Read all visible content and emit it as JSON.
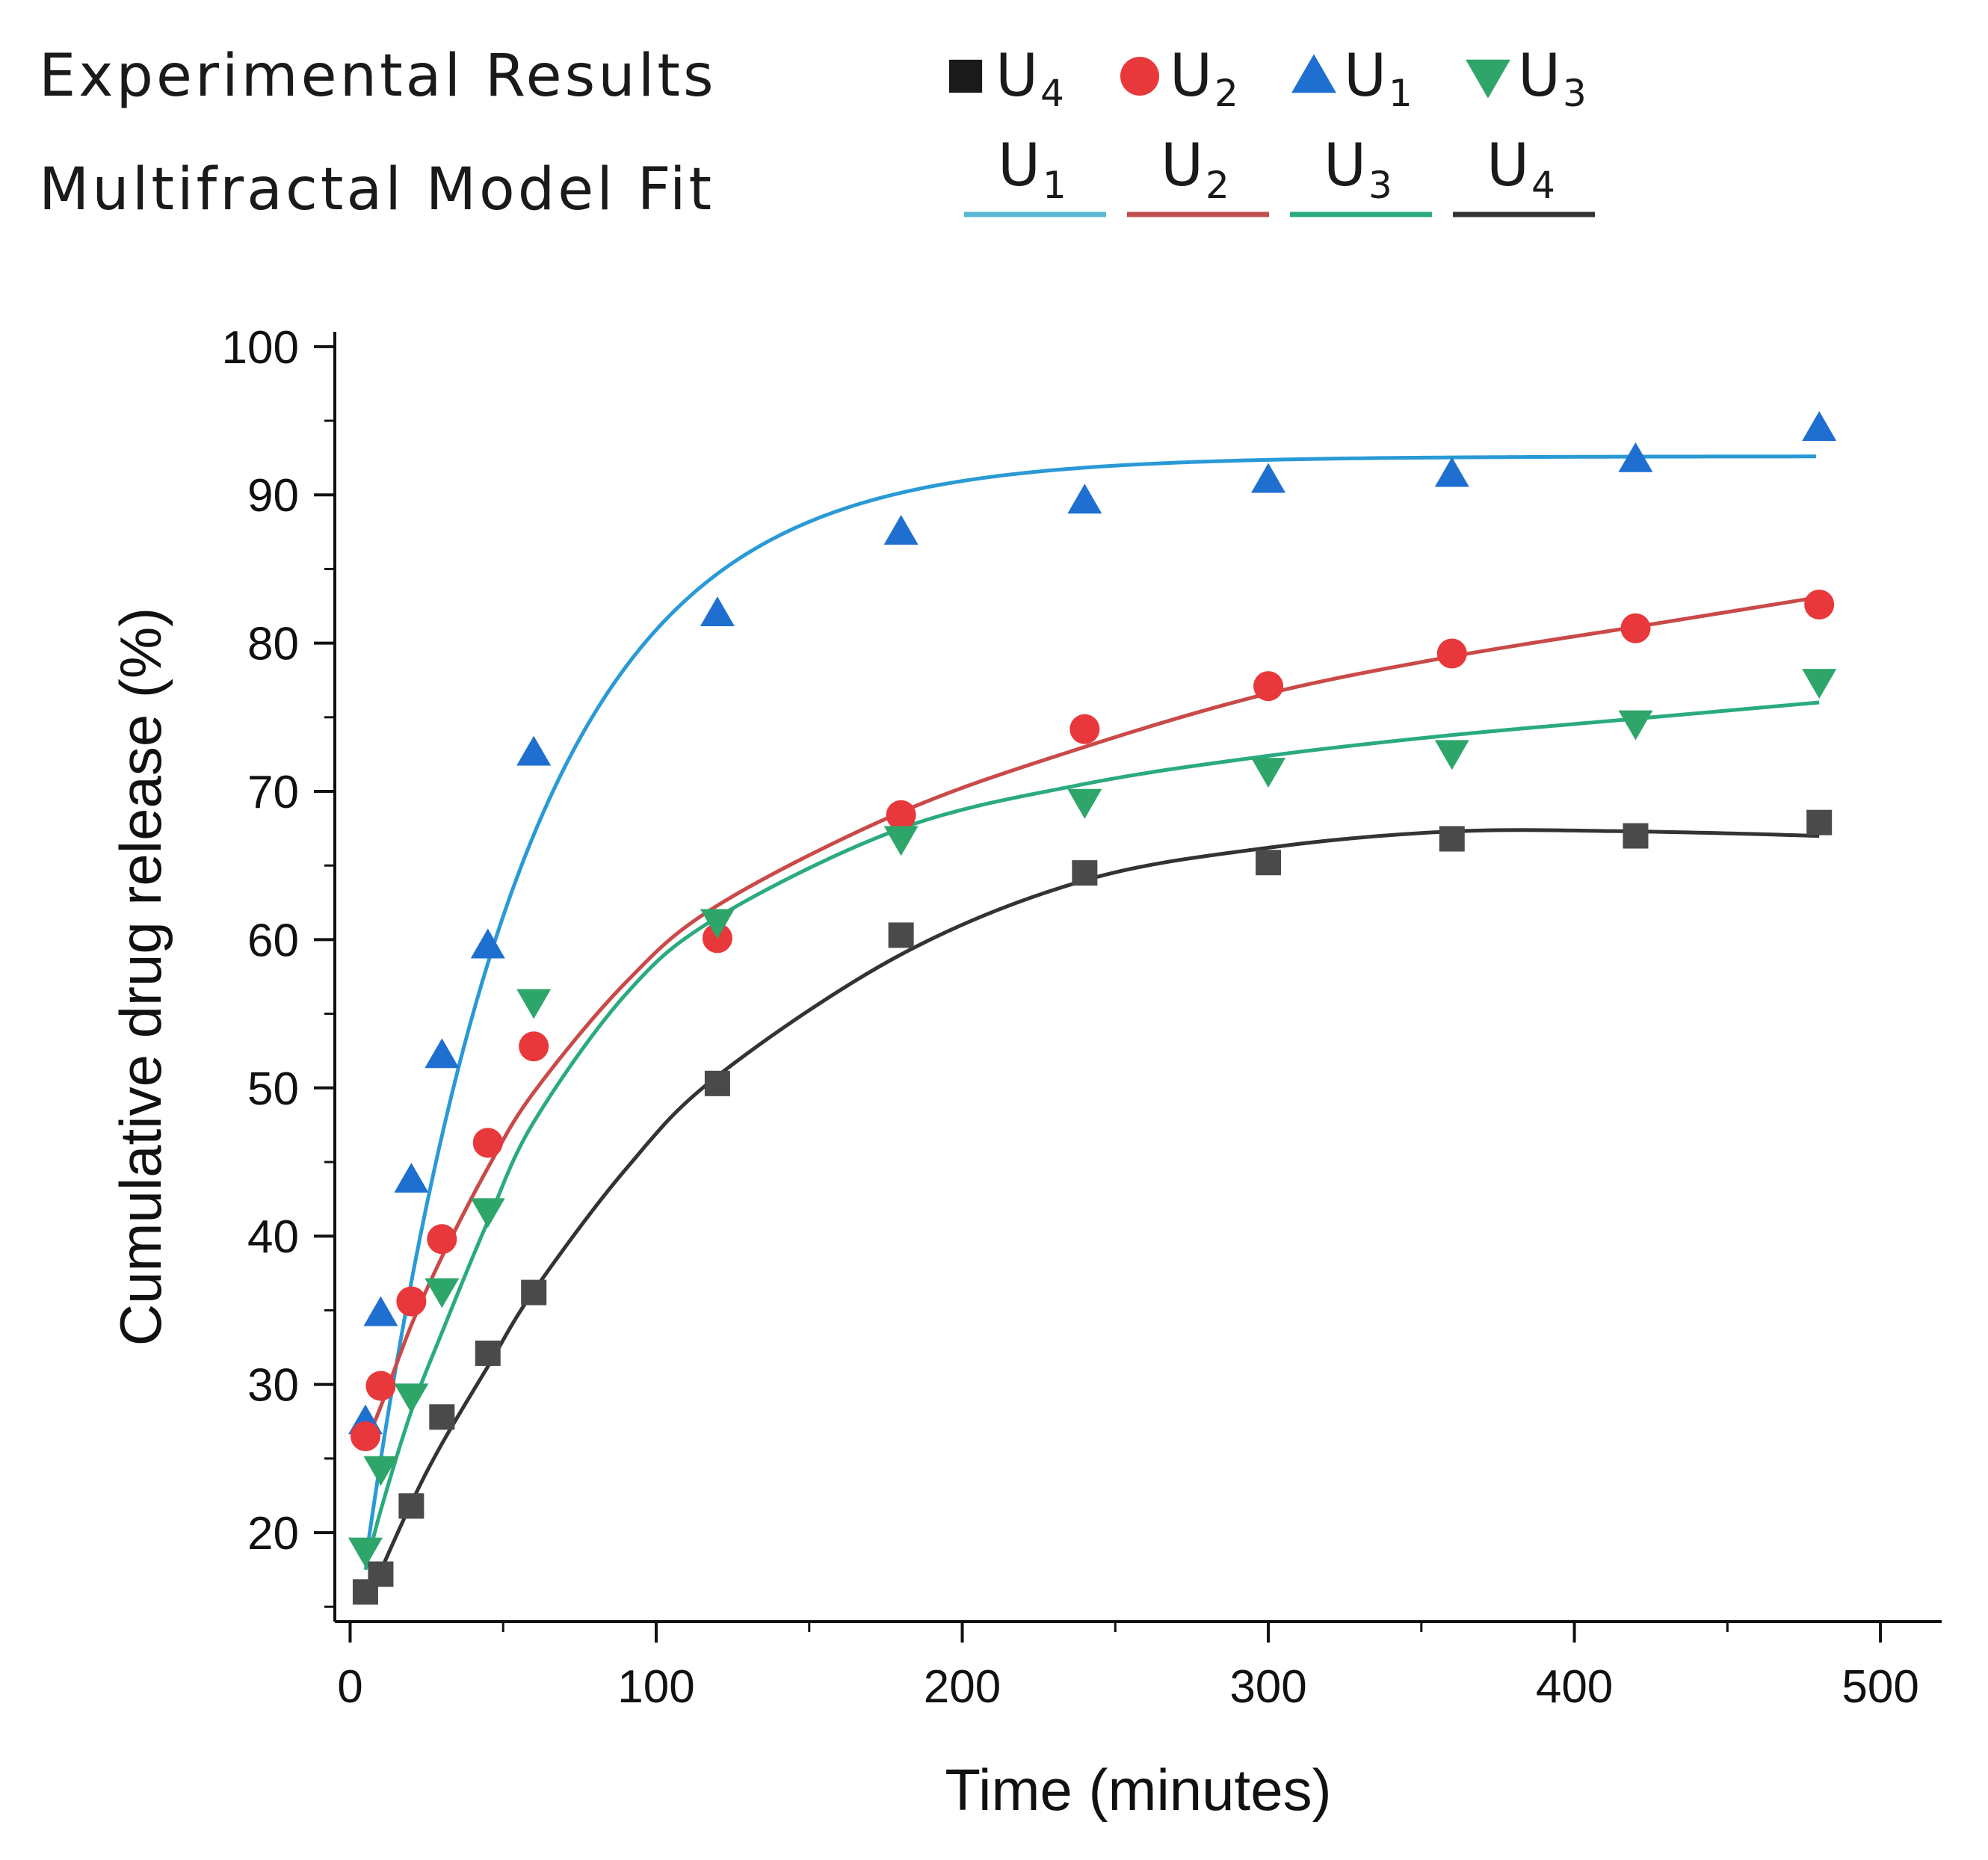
{
  "legend": {
    "experimental_label": "Experimental Results",
    "model_label": "Multifractal Model Fit",
    "experimental_items": [
      {
        "name": "U",
        "sub": "4",
        "marker": "square",
        "color": "#1a1a1a"
      },
      {
        "name": "U",
        "sub": "2",
        "marker": "circle",
        "color": "#e8383b"
      },
      {
        "name": "U",
        "sub": "1",
        "marker": "triangle-up",
        "color": "#1f6fd1"
      },
      {
        "name": "U",
        "sub": "3",
        "marker": "triangle-down",
        "color": "#2ea66a"
      }
    ],
    "model_items": [
      {
        "name": "U",
        "sub": "1",
        "color": "#5ab8d4"
      },
      {
        "name": "U",
        "sub": "2",
        "color": "#c0504d"
      },
      {
        "name": "U",
        "sub": "3",
        "color": "#2aab7f"
      },
      {
        "name": "U",
        "sub": "4",
        "color": "#333333"
      }
    ]
  },
  "chart_data": {
    "type": "scatter",
    "xlabel": "Time (minutes)",
    "ylabel": "Cumulative drug release (%)",
    "xlim": [
      -5,
      520
    ],
    "ylim": [
      14,
      101
    ],
    "xticks": [
      0,
      100,
      200,
      300,
      400,
      500
    ],
    "yticks": [
      20,
      30,
      40,
      50,
      60,
      70,
      80,
      90,
      100
    ],
    "x": [
      5,
      10,
      20,
      30,
      45,
      60,
      120,
      180,
      240,
      300,
      360,
      420,
      480
    ],
    "series": [
      {
        "name": "U1",
        "color": "#1f6fd1",
        "marker": "triangle-up",
        "fit_color": "#2a9ad6",
        "values": [
          27.5,
          34.8,
          43.8,
          52.2,
          59.6,
          72.6,
          82.0,
          87.5,
          89.6,
          91.0,
          91.4,
          92.4,
          94.5
        ],
        "fit": {
          "kind": "exp",
          "a": 18,
          "b": 92.6,
          "k": 0.0195,
          "x0": 5
        }
      },
      {
        "name": "U2",
        "color": "#e8383b",
        "marker": "circle",
        "fit_color": "#c94a48",
        "values": [
          26.5,
          29.9,
          35.6,
          39.8,
          46.3,
          52.8,
          60.1,
          68.4,
          74.2,
          77.1,
          79.3,
          81.0,
          82.6
        ],
        "fit": {
          "kind": "points",
          "points": [
            [
              5,
              26
            ],
            [
              10,
              28.5
            ],
            [
              20,
              34
            ],
            [
              30,
              38.6
            ],
            [
              45,
              44.6
            ],
            [
              60,
              49.7
            ],
            [
              90,
              57.1
            ],
            [
              120,
              62.3
            ],
            [
              180,
              68.6
            ],
            [
              240,
              73
            ],
            [
              300,
              76.6
            ],
            [
              360,
              79.1
            ],
            [
              420,
              81.1
            ],
            [
              480,
              83.1
            ]
          ]
        }
      },
      {
        "name": "U3",
        "color": "#2ea66a",
        "marker": "triangle-down",
        "fit_color": "#2aab7f",
        "values": [
          18.8,
          24.3,
          29.2,
          36.3,
          41.7,
          55.8,
          61.2,
          66.8,
          69.3,
          71.4,
          72.6,
          74.6,
          77.4
        ],
        "fit": {
          "kind": "points",
          "points": [
            [
              5,
              17.5
            ],
            [
              10,
              21.5
            ],
            [
              20,
              28.2
            ],
            [
              30,
              33.5
            ],
            [
              45,
              41
            ],
            [
              60,
              47.7
            ],
            [
              90,
              56.3
            ],
            [
              120,
              61.5
            ],
            [
              180,
              67.5
            ],
            [
              240,
              70.5
            ],
            [
              300,
              72.4
            ],
            [
              360,
              73.8
            ],
            [
              420,
              74.9
            ],
            [
              480,
              76
            ]
          ]
        }
      },
      {
        "name": "U4",
        "color": "#4a4a4a",
        "marker": "square",
        "fit_color": "#333333",
        "values": [
          16.0,
          17.2,
          21.8,
          27.8,
          32.1,
          36.2,
          50.3,
          60.3,
          64.5,
          65.2,
          66.8,
          67.0,
          67.9
        ],
        "fit": {
          "kind": "points",
          "points": [
            [
              8,
              16.5
            ],
            [
              20,
              22
            ],
            [
              30,
              26
            ],
            [
              45,
              31.2
            ],
            [
              60,
              36.3
            ],
            [
              90,
              44.5
            ],
            [
              120,
              50.8
            ],
            [
              180,
              59
            ],
            [
              240,
              64
            ],
            [
              300,
              66.2
            ],
            [
              360,
              67.3
            ],
            [
              420,
              67.3
            ],
            [
              480,
              67
            ]
          ]
        }
      }
    ]
  }
}
